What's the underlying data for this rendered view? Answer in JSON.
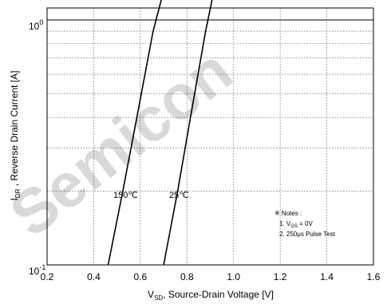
{
  "chart_data": {
    "type": "line",
    "title": "",
    "xlabel": {
      "main": "V",
      "sub": "SD",
      "rest": ", Source-Drain Voltage  [V]"
    },
    "ylabel": {
      "main": "I",
      "sub": "DR",
      "rest": " , Reverse Drain Current  [A]"
    },
    "xlim": [
      0.2,
      1.6
    ],
    "ylim": [
      0.1,
      6
    ],
    "yscale": "log",
    "grid": true,
    "x_ticks": [
      "0.2",
      "0.4",
      "0.6",
      "0.8",
      "1.0",
      "1.2",
      "1.4",
      "1.6"
    ],
    "x_tick_values": [
      0.2,
      0.4,
      0.6,
      0.8,
      1.0,
      1.2,
      1.4,
      1.6
    ],
    "y_ticks": [
      {
        "value": 0.1,
        "base": "10",
        "exp": "-1"
      },
      {
        "value": 1,
        "base": "10",
        "exp": "0"
      }
    ],
    "series": [
      {
        "name": "150℃",
        "x": [
          0.462,
          0.525,
          0.585,
          0.655,
          0.75,
          0.865,
          0.935,
          0.99
        ],
        "y": [
          0.1,
          0.2,
          0.4,
          0.9,
          2,
          4,
          5.5,
          6
        ]
      },
      {
        "name": "25℃",
        "x": [
          0.7,
          0.76,
          0.815,
          0.88,
          0.955,
          1.03,
          1.075,
          1.09
        ],
        "y": [
          0.1,
          0.2,
          0.4,
          0.9,
          2,
          4,
          5.5,
          6
        ]
      }
    ],
    "notes": {
      "title": "※ Notes :",
      "line1": {
        "pre": "1. V",
        "sub": "GS",
        "post": " = 0V"
      },
      "line2": "2. 250μs Pulse Test"
    },
    "watermark": "Semicon"
  }
}
